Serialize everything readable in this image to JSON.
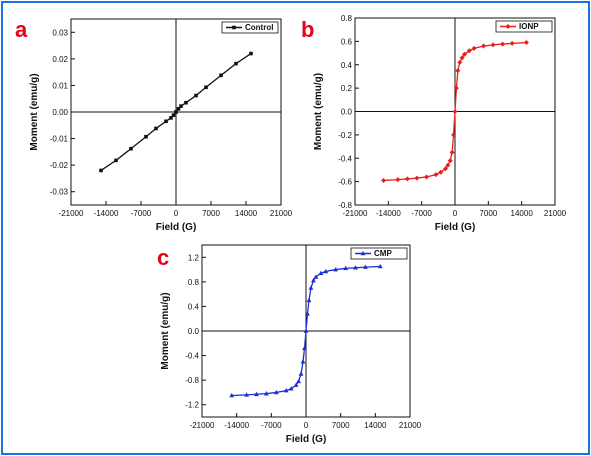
{
  "chart_data": [
    {
      "panel": "a",
      "type": "line",
      "xlabel": "Field (G)",
      "ylabel": "Moment (emu/g)",
      "xlim": [
        -21000,
        21000
      ],
      "ylim": [
        -0.035,
        0.035
      ],
      "xticks": [
        -21000,
        -14000,
        -7000,
        0,
        7000,
        14000,
        21000
      ],
      "yticks": [
        -0.03,
        -0.02,
        -0.01,
        0.0,
        0.01,
        0.02,
        0.03
      ],
      "ytick_labels": [
        "-0.03",
        "-0.02",
        "-0.01",
        "0.00",
        "0.01",
        "0.02",
        "0.03"
      ],
      "grid": false,
      "legend_position": "top-right",
      "series": [
        {
          "name": "Control",
          "color": "#111111",
          "marker": "square",
          "x": [
            -15000,
            -12000,
            -9000,
            -6000,
            -4000,
            -2000,
            -1000,
            -500,
            0,
            500,
            1000,
            2000,
            4000,
            6000,
            9000,
            12000,
            15000
          ],
          "values": [
            -0.022,
            -0.0182,
            -0.0138,
            -0.0093,
            -0.0062,
            -0.0035,
            -0.0022,
            -0.0012,
            0.0,
            0.0012,
            0.0022,
            0.0035,
            0.0062,
            0.0093,
            0.0138,
            0.0182,
            0.022
          ]
        }
      ]
    },
    {
      "panel": "b",
      "type": "line",
      "xlabel": "Field (G)",
      "ylabel": "Moment (emu/g)",
      "xlim": [
        -21000,
        21000
      ],
      "ylim": [
        -0.8,
        0.8
      ],
      "xticks": [
        -21000,
        -14000,
        -7000,
        0,
        7000,
        14000,
        21000
      ],
      "yticks": [
        -0.8,
        -0.6,
        -0.4,
        -0.2,
        0.0,
        0.2,
        0.4,
        0.6,
        0.8
      ],
      "ytick_labels": [
        "-0.8",
        "-0.6",
        "-0.4",
        "-0.2",
        "0.0",
        "0.2",
        "0.4",
        "0.6",
        "0.8"
      ],
      "grid": false,
      "legend_position": "top-right",
      "series": [
        {
          "name": "IONP",
          "color": "#e8201c",
          "marker": "diamond",
          "x": [
            -15000,
            -12000,
            -10000,
            -8000,
            -6000,
            -4000,
            -3000,
            -2000,
            -1500,
            -1000,
            -600,
            -300,
            0,
            300,
            600,
            1000,
            1500,
            2000,
            3000,
            4000,
            6000,
            8000,
            10000,
            12000,
            15000
          ],
          "values": [
            -0.59,
            -0.583,
            -0.577,
            -0.57,
            -0.56,
            -0.54,
            -0.52,
            -0.49,
            -0.46,
            -0.42,
            -0.35,
            -0.2,
            0.0,
            0.2,
            0.35,
            0.42,
            0.46,
            0.49,
            0.52,
            0.54,
            0.56,
            0.57,
            0.577,
            0.583,
            0.59
          ]
        }
      ]
    },
    {
      "panel": "c",
      "type": "line",
      "xlabel": "Field (G)",
      "ylabel": "Moment (emu/g)",
      "xlim": [
        -21000,
        21000
      ],
      "ylim": [
        -1.4,
        1.4
      ],
      "xticks": [
        -21000,
        -14000,
        -7000,
        0,
        7000,
        14000,
        21000
      ],
      "yticks": [
        -1.2,
        -0.8,
        -0.4,
        0.0,
        0.4,
        0.8,
        1.2
      ],
      "ytick_labels": [
        "-1.2",
        "-0.8",
        "-0.4",
        "0.0",
        "0.4",
        "0.8",
        "1.2"
      ],
      "grid": false,
      "legend_position": "top-right",
      "series": [
        {
          "name": "CMP",
          "color": "#1c2fd6",
          "marker": "triangle",
          "x": [
            -15000,
            -12000,
            -10000,
            -8000,
            -6000,
            -4000,
            -3000,
            -2000,
            -1500,
            -1000,
            -600,
            -300,
            0,
            300,
            600,
            1000,
            1500,
            2000,
            3000,
            4000,
            6000,
            8000,
            10000,
            12000,
            15000
          ],
          "values": [
            -1.05,
            -1.04,
            -1.03,
            -1.02,
            -1.0,
            -0.97,
            -0.94,
            -0.88,
            -0.82,
            -0.7,
            -0.5,
            -0.28,
            0.0,
            0.28,
            0.5,
            0.7,
            0.82,
            0.88,
            0.94,
            0.97,
            1.0,
            1.02,
            1.03,
            1.04,
            1.05
          ]
        }
      ]
    }
  ]
}
